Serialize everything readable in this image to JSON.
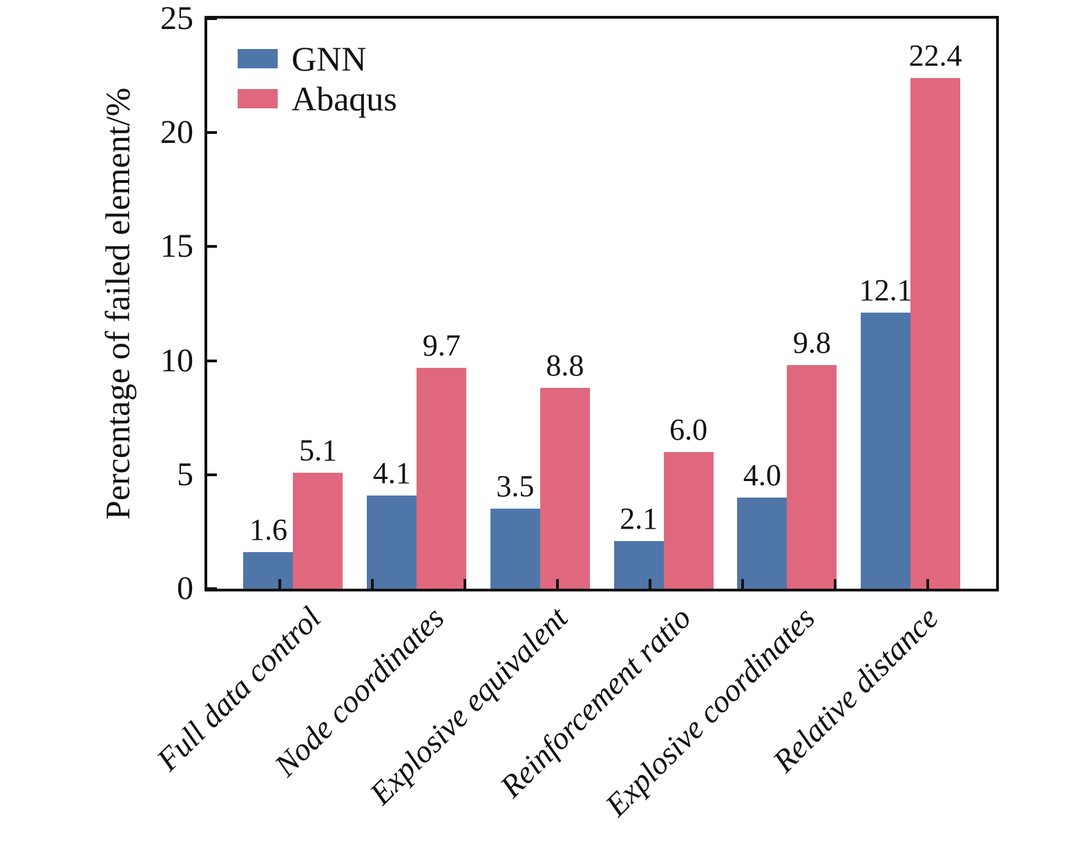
{
  "figure": {
    "background": "#ffffff",
    "axis_color": "#111111"
  },
  "chart_data": {
    "type": "bar",
    "title": "",
    "xlabel": "",
    "ylabel": "Percentage of failed element/%",
    "categories": [
      "Full data control",
      "Node coordinates",
      "Explosive equivalent",
      "Reinforcement ratio",
      "Explosive coordinates",
      "Relative distance"
    ],
    "series": [
      {
        "name": "GNN",
        "color": "#4f76a8",
        "values": [
          1.6,
          4.1,
          3.5,
          2.1,
          4.0,
          12.1
        ]
      },
      {
        "name": "Abaqus",
        "color": "#e0687e",
        "values": [
          5.1,
          9.7,
          8.8,
          6.0,
          9.8,
          22.4
        ]
      }
    ],
    "ylim": [
      0,
      25
    ],
    "yticks": [
      0,
      5,
      10,
      15,
      20,
      25
    ],
    "grid": false,
    "legend_position": "top-left",
    "value_label_decimals": 1,
    "x_tick_count": 8
  }
}
